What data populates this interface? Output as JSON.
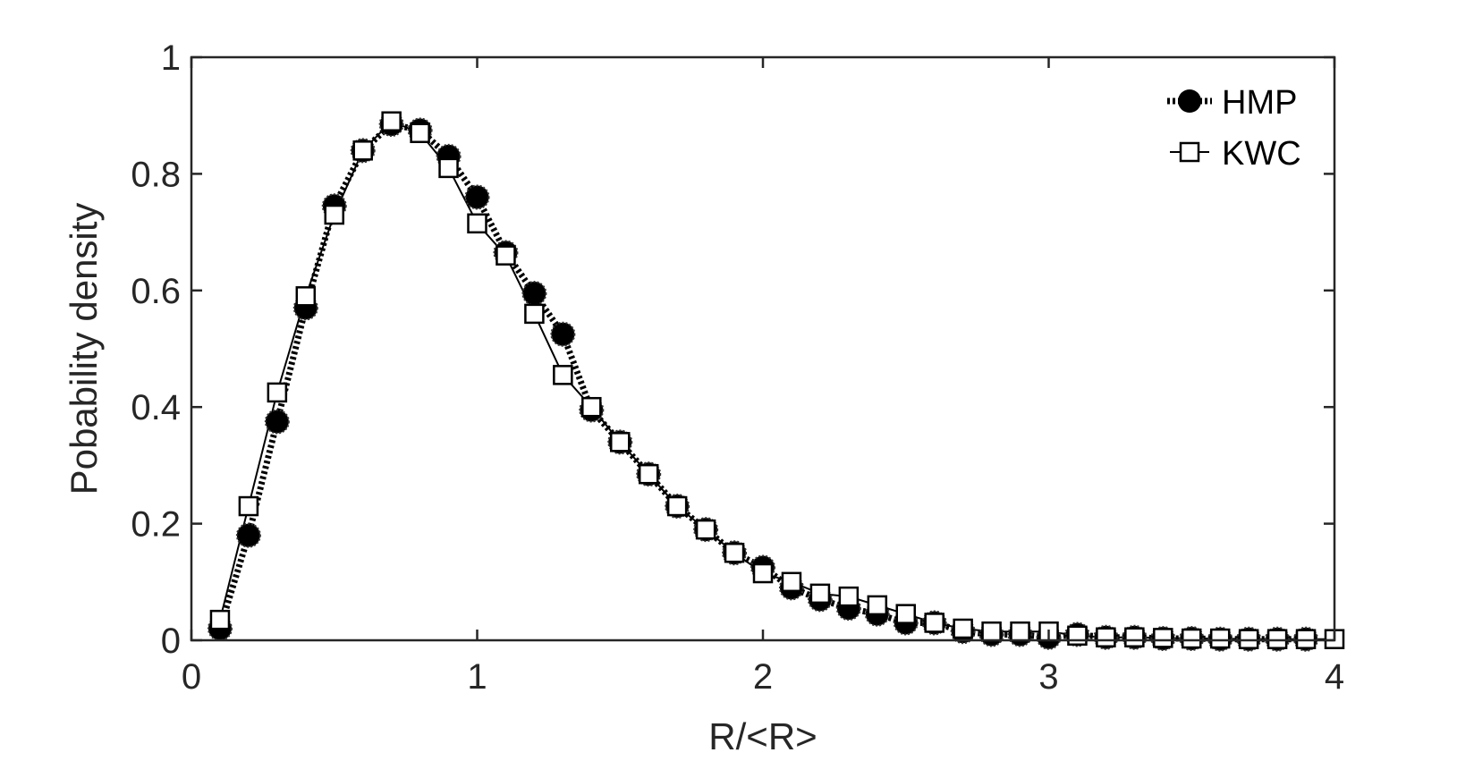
{
  "chart_data": {
    "type": "line",
    "xlabel": "R/<R>",
    "ylabel": "Pobability density",
    "xlim": [
      0,
      4
    ],
    "ylim": [
      0,
      1
    ],
    "xticks": [
      "0",
      "1",
      "2",
      "3",
      "4"
    ],
    "yticks": [
      "0",
      "0.2",
      "0.4",
      "0.6",
      "0.8",
      "1"
    ],
    "grid": false,
    "legend_position": "top-right",
    "x": [
      0.1,
      0.2,
      0.3,
      0.4,
      0.5,
      0.6,
      0.7,
      0.8,
      0.9,
      1.0,
      1.1,
      1.2,
      1.3,
      1.4,
      1.5,
      1.6,
      1.7,
      1.8,
      1.9,
      2.0,
      2.1,
      2.2,
      2.3,
      2.4,
      2.5,
      2.6,
      2.7,
      2.8,
      2.9,
      3.0,
      3.1,
      3.2,
      3.3,
      3.4,
      3.5,
      3.6,
      3.7,
      3.8,
      3.9,
      4.0
    ],
    "series": [
      {
        "name": "HMP",
        "marker": "filled-circle",
        "line": "thick-dotted",
        "color": "#000000",
        "values": [
          0.02,
          0.18,
          0.375,
          0.57,
          0.745,
          0.84,
          0.885,
          0.875,
          0.83,
          0.76,
          0.665,
          0.595,
          0.525,
          0.395,
          0.34,
          0.285,
          0.23,
          0.19,
          0.15,
          0.125,
          0.09,
          0.07,
          0.055,
          0.045,
          0.03,
          0.03,
          0.015,
          0.01,
          0.01,
          0.005,
          0.01,
          0.005,
          0.005,
          0.003,
          0.003,
          0.002,
          0.002,
          0.002,
          0.002,
          null
        ]
      },
      {
        "name": "KWC",
        "marker": "open-square",
        "line": "thin-solid",
        "color": "#000000",
        "values": [
          0.035,
          0.23,
          0.425,
          0.59,
          0.73,
          0.84,
          0.89,
          0.87,
          0.81,
          0.715,
          0.66,
          0.56,
          0.455,
          0.4,
          0.34,
          0.285,
          0.23,
          0.19,
          0.15,
          0.115,
          0.1,
          0.08,
          0.075,
          0.06,
          0.045,
          0.03,
          0.02,
          0.015,
          0.015,
          0.015,
          0.008,
          0.005,
          0.005,
          0.004,
          0.003,
          0.003,
          0.002,
          0.002,
          0.002,
          0.002
        ]
      }
    ]
  }
}
